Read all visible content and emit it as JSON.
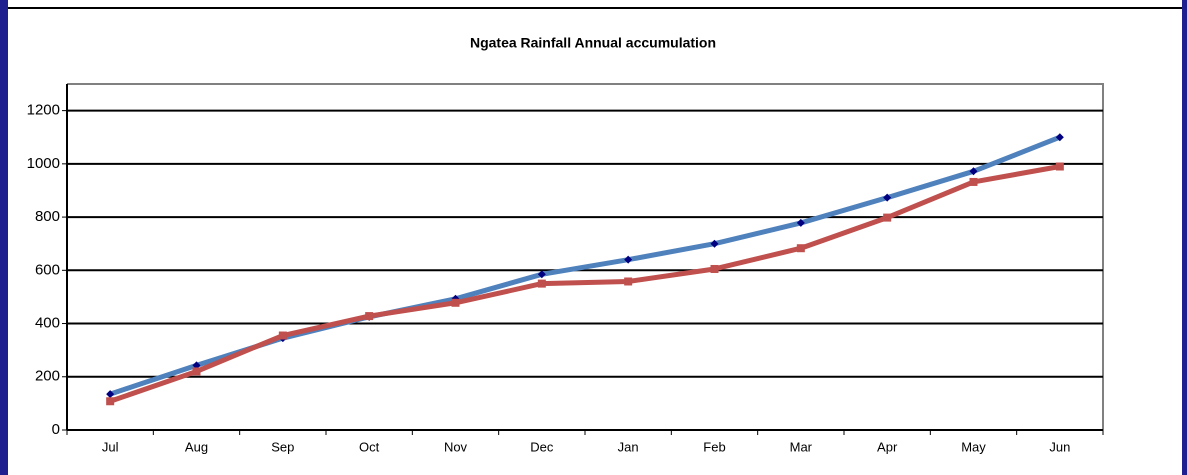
{
  "chart_data": {
    "type": "line",
    "title": "Ngatea Rainfall Annual accumulation",
    "categories": [
      "Jul",
      "Aug",
      "Sep",
      "Oct",
      "Nov",
      "Dec",
      "Jan",
      "Feb",
      "Mar",
      "Apr",
      "May",
      "Jun"
    ],
    "series": [
      {
        "color": "#4f81bd",
        "marker_color": "#000080",
        "marker": "diamond",
        "values": [
          135,
          243,
          345,
          425,
          493,
          585,
          640,
          700,
          778,
          873,
          972,
          1100
        ]
      },
      {
        "color": "#c0504d",
        "marker_color": "#c0504d",
        "marker": "square",
        "values": [
          108,
          220,
          355,
          428,
          478,
          550,
          558,
          605,
          683,
          798,
          932,
          990
        ]
      }
    ],
    "ylim": [
      0,
      1300
    ],
    "yticks": [
      0,
      200,
      400,
      600,
      800,
      1000,
      1200
    ],
    "grid": true
  }
}
